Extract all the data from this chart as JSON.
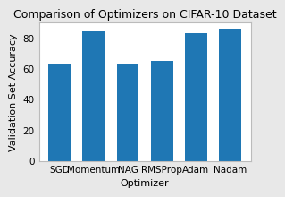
{
  "title": "Comparison of Optimizers on CIFAR-10 Dataset",
  "xlabel": "Optimizer",
  "ylabel": "Validation Set Accuracy",
  "categories": [
    "SGD",
    "Momentum",
    "NAG",
    "RMSProp",
    "Adam",
    "Nadam"
  ],
  "values": [
    62.5,
    84.0,
    63.0,
    65.0,
    83.2,
    86.2
  ],
  "bar_color": "#1f77b4",
  "ylim": [
    0,
    90
  ],
  "yticks": [
    0,
    20,
    40,
    60,
    80
  ],
  "figure_facecolor": "#e8e8e8",
  "axes_facecolor": "#ffffff",
  "title_fontsize": 9,
  "label_fontsize": 8,
  "tick_fontsize": 7.5
}
